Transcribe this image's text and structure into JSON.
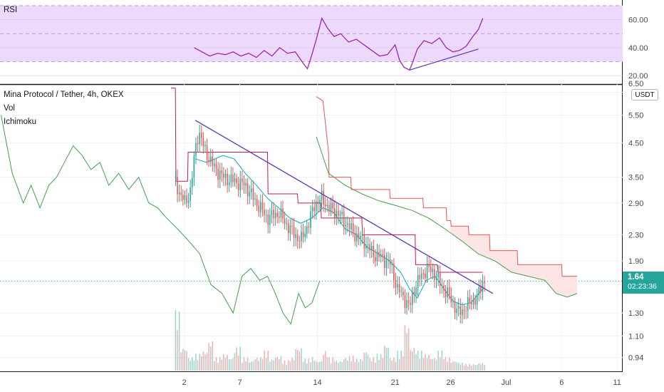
{
  "header": {
    "rsi_label": "RSI",
    "symbol_title": "Mina Protocol / Tether, 4h, OKEX",
    "vol_label": "Vol",
    "ichimoku_label": "Ichimoku",
    "currency_label": "USDT",
    "last_price": "1.64",
    "countdown": "02:23:36"
  },
  "colors": {
    "up": "#26a69a",
    "down": "#ef5350",
    "rsi_line": "#9c27b0",
    "rsi_band": "#ecd9fb",
    "tenkan": "#00acc1",
    "kijun": "#c2185b",
    "chikou": "#43a047",
    "span_b": "#ef5350",
    "span_a": "#43a047",
    "cloud": "#fde2e2",
    "trendline": "#5e35b1"
  },
  "chart_data": [
    {
      "type": "line",
      "title": "RSI",
      "ylim": [
        15,
        72
      ],
      "y_ticks": [
        "60.00",
        "40.00",
        "20.00"
      ],
      "y_tick_values": [
        60,
        40,
        20
      ],
      "bands": [
        30,
        50,
        70
      ],
      "series": [
        {
          "name": "RSI",
          "x": [
            2.9,
            3.6,
            4.3,
            5.0,
            5.7,
            6.4,
            7.1,
            7.8,
            8.5,
            9.2,
            9.9,
            10.6,
            11.3,
            12.0,
            12.7,
            13.1,
            13.5,
            13.9,
            14.4,
            14.9,
            15.5,
            16.1,
            16.8,
            17.5,
            18.2,
            18.9,
            19.6,
            20.3,
            21.0,
            21.4,
            21.8,
            22.3,
            22.6,
            23.0,
            23.6,
            24.3,
            25.0,
            25.6,
            26.2,
            26.8,
            27.4,
            28.0,
            28.5,
            28.9
          ],
          "y": [
            40,
            37,
            34,
            36,
            35,
            37,
            34,
            36,
            33,
            38,
            34,
            40,
            36,
            37,
            29,
            25,
            35,
            46,
            61,
            54,
            48,
            50,
            44,
            46,
            42,
            38,
            34,
            35,
            42,
            31,
            26,
            24,
            30,
            39,
            45,
            43,
            47,
            40,
            37,
            38,
            41,
            48,
            53,
            61
          ]
        },
        {
          "name": "divergence line",
          "x": [
            22.3,
            28.5
          ],
          "y": [
            24,
            39
          ]
        }
      ]
    },
    {
      "type": "candlestick",
      "title": "Mina Protocol / Tether, 4h, OKEX",
      "y_scale": "log",
      "ylim": [
        0.85,
        6.9
      ],
      "y_ticks": [
        "6.50",
        "5.50",
        "4.50",
        "3.50",
        "2.90",
        "2.30",
        "1.90",
        "1.64",
        "1.30",
        "1.10",
        "0.94"
      ],
      "y_tick_values": [
        6.5,
        5.5,
        4.5,
        3.5,
        2.9,
        2.3,
        1.9,
        1.64,
        1.3,
        1.1,
        0.94
      ],
      "x_ticks": [
        "2",
        "7",
        "14",
        "21",
        "26",
        "Jul",
        "6",
        "11"
      ],
      "x_tick_values": [
        2,
        7,
        14,
        21,
        26,
        31,
        36,
        41
      ],
      "xlim": [
        -14.6,
        41.5
      ],
      "last_price": 1.64,
      "close_keypoints": {
        "x": [
          1.2,
          1.6,
          2.1,
          2.6,
          3.0,
          3.3,
          3.8,
          4.6,
          5.5,
          6.5,
          7.5,
          8.5,
          9.5,
          10.5,
          11.5,
          12.5,
          13.2,
          13.8,
          14.4,
          15.0,
          15.8,
          16.6,
          17.4,
          18.2,
          19.0,
          19.8,
          20.6,
          21.2,
          21.8,
          22.3,
          22.7,
          23.3,
          23.9,
          24.5,
          25.1,
          25.7,
          26.2,
          26.7,
          27.3,
          27.9,
          28.4,
          28.9
        ],
        "y": [
          3.4,
          3.1,
          2.9,
          3.2,
          4.3,
          4.9,
          4.3,
          3.8,
          3.5,
          3.4,
          3.3,
          2.9,
          2.6,
          2.7,
          2.4,
          2.2,
          2.5,
          2.9,
          3.0,
          2.8,
          2.7,
          2.5,
          2.3,
          2.2,
          2.0,
          1.95,
          1.85,
          1.55,
          1.45,
          1.35,
          1.55,
          1.7,
          1.8,
          1.75,
          1.6,
          1.5,
          1.4,
          1.3,
          1.35,
          1.42,
          1.45,
          1.64
        ]
      },
      "ichimoku": {
        "tenkan": {
          "x": [
            3.0,
            4.0,
            5.5,
            6.5,
            7.5,
            8.5,
            9.5,
            10.5,
            11.5,
            12.5,
            13.5,
            14.5,
            15.5,
            16.5,
            17.5,
            18.5,
            19.5,
            20.5,
            21.5,
            22.3,
            23.0,
            23.8,
            24.6,
            25.4,
            26.2,
            27.0,
            27.8,
            28.9
          ],
          "y": [
            4.0,
            3.9,
            4.1,
            4.0,
            3.6,
            3.3,
            3.0,
            2.8,
            2.6,
            2.5,
            2.6,
            2.8,
            2.7,
            2.4,
            2.3,
            2.1,
            2.0,
            1.9,
            1.75,
            1.55,
            1.45,
            1.65,
            1.7,
            1.55,
            1.42,
            1.38,
            1.4,
            1.55
          ]
        },
        "kijun": {
          "x": [
            0.8,
            1.2,
            1.25,
            2.3,
            2.35,
            9.5,
            9.55,
            12.2,
            12.25,
            14.3,
            14.35,
            18.0,
            18.05,
            22.8,
            22.85,
            24.8,
            24.85,
            28.9
          ],
          "y": [
            6.7,
            6.7,
            3.4,
            3.4,
            4.2,
            4.2,
            3.1,
            3.1,
            2.9,
            2.9,
            2.6,
            2.6,
            2.3,
            2.3,
            1.85,
            1.85,
            1.75,
            1.75
          ]
        },
        "chikou": {
          "x": [
            -14.5,
            -13.5,
            -12.5,
            -11.8,
            -11.0,
            -10.2,
            -9.5,
            -8.8,
            -8.0,
            -7.2,
            -6.4,
            -5.6,
            -4.8,
            -3.9,
            -3.0,
            -2.1,
            -1.2,
            -0.4,
            0.4,
            1.4,
            2.4,
            3.4,
            4.4,
            5.4,
            6.4,
            7.2,
            8.0,
            8.8,
            9.5,
            10.2,
            10.9,
            11.6,
            12.3,
            12.9,
            13.5,
            14.2
          ],
          "y": [
            5.5,
            3.6,
            2.9,
            3.3,
            2.8,
            3.3,
            3.5,
            3.9,
            4.4,
            4.1,
            3.7,
            3.9,
            3.3,
            3.6,
            3.2,
            3.5,
            2.9,
            2.8,
            2.6,
            2.4,
            2.2,
            2.0,
            1.6,
            1.5,
            1.3,
            1.7,
            1.8,
            1.65,
            1.7,
            1.5,
            1.3,
            1.2,
            1.5,
            1.35,
            1.4,
            1.64
          ]
        },
        "span_b": {
          "x": [
            13.9,
            14.5,
            15.0,
            15.05,
            17.0,
            17.05,
            20.5,
            20.55,
            23.5,
            23.55,
            25.6,
            25.65,
            26.0,
            26.05,
            27.6,
            27.65,
            29.5,
            29.55,
            32.0,
            32.05,
            36.0,
            36.05,
            37.4
          ],
          "y": [
            6.3,
            6.1,
            4.2,
            3.5,
            3.5,
            3.2,
            3.2,
            3.0,
            3.0,
            2.8,
            2.8,
            2.55,
            2.55,
            2.45,
            2.45,
            2.3,
            2.3,
            2.05,
            2.05,
            1.85,
            1.85,
            1.7,
            1.7
          ]
        },
        "span_a": {
          "x": [
            13.9,
            15.0,
            16.5,
            18.0,
            19.5,
            21.0,
            22.5,
            24.0,
            25.5,
            27.0,
            28.5,
            30.0,
            31.5,
            33.0,
            34.5,
            35.5,
            36.5,
            37.4
          ],
          "y": [
            4.7,
            3.6,
            3.3,
            3.1,
            2.95,
            2.85,
            2.75,
            2.6,
            2.4,
            2.2,
            2.0,
            1.9,
            1.75,
            1.7,
            1.65,
            1.5,
            1.46,
            1.5
          ]
        }
      },
      "trendline": {
        "x": [
          3.0,
          29.8
        ],
        "y": [
          5.3,
          1.5
        ]
      }
    },
    {
      "type": "bar",
      "title": "Vol",
      "note": "volume bars follow candle colors; approximate relative heights",
      "ymax": 1.0,
      "values": [
        0.9,
        0.35,
        0.2,
        0.25,
        0.3,
        0.45,
        0.2,
        0.25,
        0.2,
        0.35,
        0.2,
        0.15,
        0.2,
        0.3,
        0.18,
        0.22,
        0.15,
        0.2,
        0.35,
        0.18,
        0.2,
        0.15,
        0.3,
        0.2,
        0.15,
        0.2,
        0.22,
        0.18,
        0.3,
        0.2,
        0.25,
        0.4,
        0.2,
        0.3,
        0.7,
        0.35,
        0.3,
        0.25,
        0.2,
        0.3,
        0.2,
        0.15,
        0.12,
        0.1,
        0.1,
        0.12
      ]
    }
  ]
}
